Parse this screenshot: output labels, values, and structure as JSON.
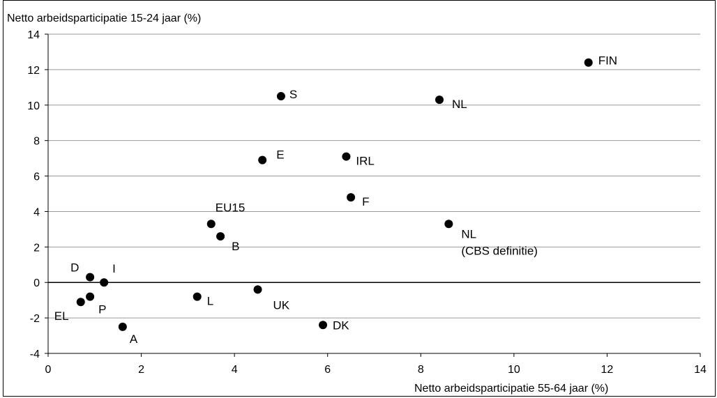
{
  "chart_data": {
    "type": "scatter",
    "xlabel": "Netto arbeidsparticipatie 55-64 jaar (%)",
    "ylabel": "Netto arbeidsparticipatie 15-24 jaar (%)",
    "xlim": [
      0,
      14
    ],
    "ylim": [
      -4,
      14
    ],
    "xticks": [
      0,
      2,
      4,
      6,
      8,
      10,
      12,
      14
    ],
    "yticks": [
      -4,
      -2,
      0,
      2,
      4,
      6,
      8,
      10,
      12,
      14
    ],
    "grid": "horizontal",
    "marker_color": "#000000",
    "points": [
      {
        "label": "FIN",
        "x": 11.6,
        "y": 12.4
      },
      {
        "label": "S",
        "x": 5.0,
        "y": 10.5
      },
      {
        "label": "NL",
        "x": 8.4,
        "y": 10.3
      },
      {
        "label": "E",
        "x": 4.6,
        "y": 6.9
      },
      {
        "label": "IRL",
        "x": 6.4,
        "y": 7.1
      },
      {
        "label": "F",
        "x": 6.5,
        "y": 4.8
      },
      {
        "label": "EU15",
        "x": 3.5,
        "y": 3.3
      },
      {
        "label": "NL",
        "label2": "(CBS definitie)",
        "x": 8.6,
        "y": 3.3
      },
      {
        "label": "B",
        "x": 3.7,
        "y": 2.6
      },
      {
        "label": "D",
        "x": 0.9,
        "y": 0.3
      },
      {
        "label": "I",
        "x": 1.2,
        "y": 0.0
      },
      {
        "label": "UK",
        "x": 4.5,
        "y": -0.4
      },
      {
        "label": "L",
        "x": 3.2,
        "y": -0.8
      },
      {
        "label": "P",
        "x": 0.9,
        "y": -0.8
      },
      {
        "label": "EL",
        "x": 0.7,
        "y": -1.1
      },
      {
        "label": "DK",
        "x": 5.9,
        "y": -2.4
      },
      {
        "label": "A",
        "x": 1.6,
        "y": -2.5
      }
    ]
  }
}
